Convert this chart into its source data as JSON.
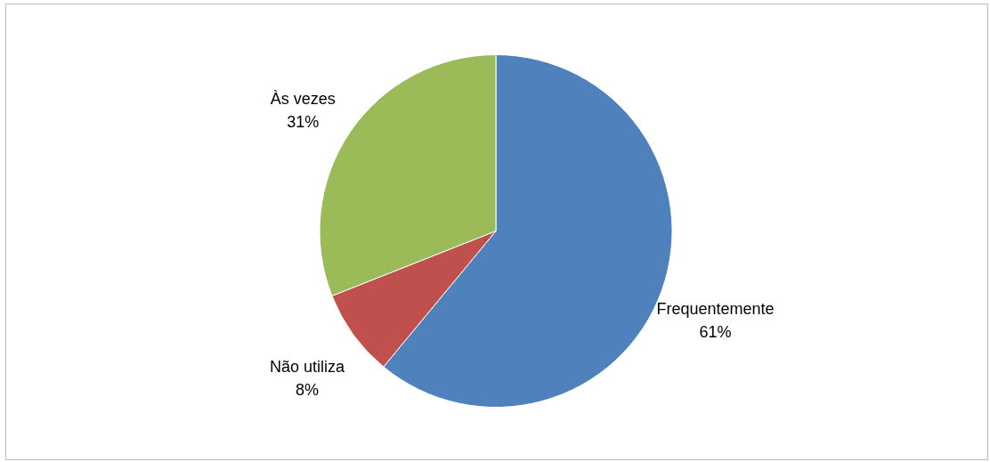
{
  "chart_data": {
    "type": "pie",
    "categories": [
      "Frequentemente",
      "Não utiliza",
      "Às vezes"
    ],
    "values": [
      61,
      8,
      31
    ],
    "colors": [
      "#4f81bd",
      "#c0504d",
      "#9bbb59"
    ],
    "value_labels": [
      "61%",
      "8%",
      "31%"
    ]
  }
}
